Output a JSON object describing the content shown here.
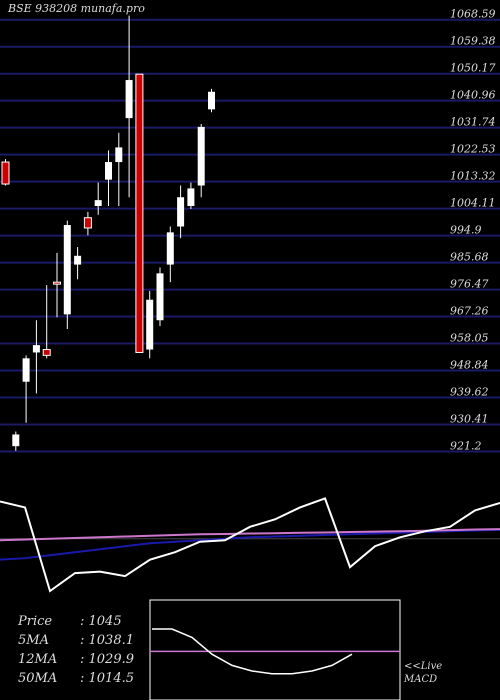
{
  "chart_data": {
    "type": "candlestick",
    "title": "BSE 938208  munafa.pro",
    "yticks": [
      "1068.59",
      "1059.38",
      "1050.17",
      "1040.96",
      "1031.74",
      "1022.53",
      "1013.32",
      "1004.11",
      "994.9",
      "985.68",
      "976.47",
      "967.26",
      "958.05",
      "948.84",
      "939.62",
      "930.41",
      "921.2"
    ],
    "ylim": [
      917.6,
      1072.6
    ],
    "grid": true,
    "colors": {
      "up": "#ffffff",
      "down": "#cc0000",
      "grid": "#1a1a66",
      "macd": "#ffffff",
      "signal": "#cc77cc",
      "ma": "#1a1aaa"
    },
    "candles": [
      {
        "open": 1020.0,
        "high": 1021.0,
        "low": 1012.0,
        "close": 1012.5
      },
      {
        "open": 923.0,
        "high": 928.0,
        "low": 921.4,
        "close": 927.0
      },
      {
        "open": 945.0,
        "high": 954.0,
        "low": 931.0,
        "close": 953.0
      },
      {
        "open": 955.0,
        "high": 966.0,
        "low": 941.0,
        "close": 957.5
      },
      {
        "open": 956.0,
        "high": 978.0,
        "low": 953.0,
        "close": 954.0
      },
      {
        "open": 979.0,
        "high": 989.0,
        "low": 967.0,
        "close": 978.5
      },
      {
        "open": 968.0,
        "high": 1000.0,
        "low": 963.0,
        "close": 998.5
      },
      {
        "open": 985.0,
        "high": 991.0,
        "low": 980.0,
        "close": 988.0
      },
      {
        "open": 1001.0,
        "high": 1003.0,
        "low": 995.0,
        "close": 997.5
      },
      {
        "open": 1005.0,
        "high": 1013.0,
        "low": 1002.0,
        "close": 1007.0
      },
      {
        "open": 1014.0,
        "high": 1024.0,
        "low": 1005.0,
        "close": 1020.0
      },
      {
        "open": 1020.0,
        "high": 1030.0,
        "low": 1005.0,
        "close": 1025.0
      },
      {
        "open": 1035.0,
        "high": 1070.0,
        "low": 1008.0,
        "close": 1048.0
      },
      {
        "open": 1050.0,
        "high": 1050.0,
        "low": 955.0,
        "close": 955.0
      },
      {
        "open": 956.0,
        "high": 976.0,
        "low": 953.0,
        "close": 973.0
      },
      {
        "open": 966.0,
        "high": 984.0,
        "low": 964.0,
        "close": 982.0
      },
      {
        "open": 985.0,
        "high": 998.0,
        "low": 979.0,
        "close": 996.0
      },
      {
        "open": 998.0,
        "high": 1012.0,
        "low": 994.0,
        "close": 1008.0
      },
      {
        "open": 1005.0,
        "high": 1013.0,
        "low": 1004.0,
        "close": 1011.0
      },
      {
        "open": 1012.0,
        "high": 1033.0,
        "low": 1008.0,
        "close": 1032.0
      },
      {
        "open": 1038.0,
        "high": 1045.0,
        "low": 1037.0,
        "close": 1044.0
      }
    ],
    "macd": {
      "line": [
        16,
        12,
        -44,
        -32,
        -31,
        -34,
        -23,
        -18,
        -11,
        -10,
        -1,
        4,
        12,
        18,
        -28,
        -14,
        -8,
        -4,
        -1,
        10,
        15
      ],
      "signal": [
        -10,
        -9.5,
        -9,
        -8.5,
        -8,
        -7.5,
        -7,
        -6.5,
        -6,
        -5.8,
        -5.5,
        -5.3,
        -5,
        -4.8,
        -4.5,
        -4.2,
        -4,
        -3.6,
        -3.2,
        -2.8,
        -2.5
      ],
      "ma": [
        -23,
        -22,
        -20,
        -18,
        -16,
        -14,
        -12,
        -11,
        -10,
        -9,
        -8,
        -7.5,
        -7,
        -6.5,
        -6,
        -5.5,
        -5,
        -4.5,
        -4,
        -3.5,
        -3
      ],
      "zero_line": true
    },
    "macd_inset": {
      "line": [
        5,
        5,
        2,
        -4,
        -8,
        -10,
        -11,
        -11,
        -10,
        -8,
        -4
      ],
      "signal": [
        -3,
        -3,
        -3,
        -3,
        -3,
        -3,
        -3,
        -3,
        -3,
        -3,
        -3
      ]
    }
  },
  "info": {
    "rows": [
      {
        "key": "Price",
        "value": ": 1045"
      },
      {
        "key": "5MA",
        "value": ": 1038.1"
      },
      {
        "key": "12MA",
        "value": ": 1029.9"
      },
      {
        "key": "50MA",
        "value": ": 1014.5"
      }
    ]
  },
  "macd_label": {
    "line1": "<<Live",
    "line2": "MACD"
  }
}
